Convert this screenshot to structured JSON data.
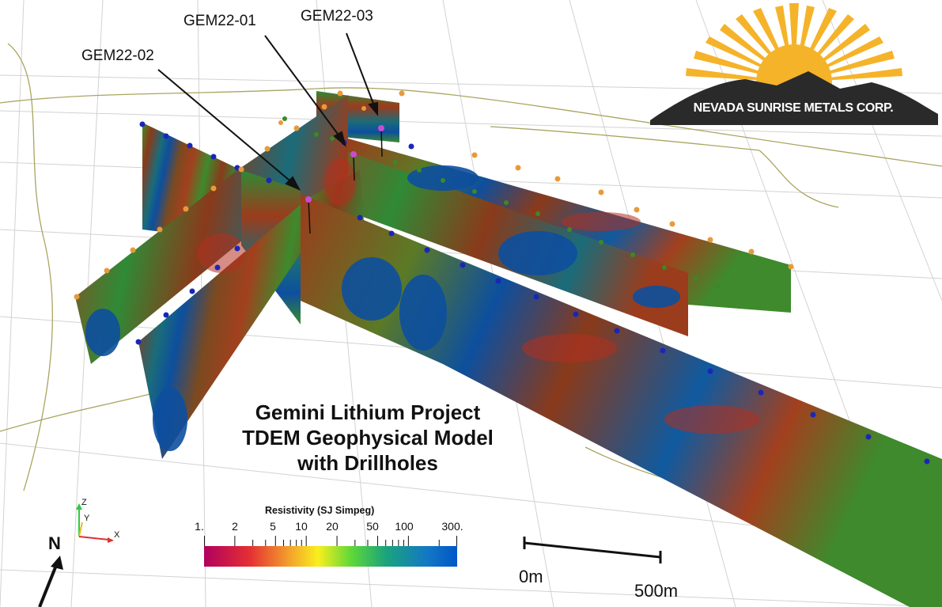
{
  "drillholes": [
    {
      "label": "GEM22-01"
    },
    {
      "label": "GEM22-02"
    },
    {
      "label": "GEM22-03"
    }
  ],
  "title_lines": [
    "Gemini Lithium Project",
    "TDEM Geophysical Model",
    "with Drillholes"
  ],
  "logo": {
    "text": "NEVADA SUNRISE METALS CORP.",
    "sun_color": "#f5b32a",
    "mountain_color": "#2a2a2a"
  },
  "colorbar": {
    "title": "Resistivity (SJ Simpeg)",
    "tick_labels": [
      "1.",
      "2",
      "5",
      "10",
      "20",
      "50",
      "100",
      "300."
    ],
    "tick_values": [
      1,
      2,
      5,
      10,
      20,
      50,
      100,
      300
    ],
    "minor_ticks": [
      3,
      4,
      6,
      7,
      8,
      9,
      30,
      40,
      60,
      70,
      80,
      90,
      200
    ],
    "min": 1,
    "max": 300,
    "scale": "log",
    "colors": [
      "#b1005e",
      "#e43034",
      "#f3a32b",
      "#f9ef1e",
      "#60d838",
      "#1aa37d",
      "#1478c4",
      "#0057c8"
    ]
  },
  "axes": {
    "x": "X",
    "y": "Y",
    "z": "Z"
  },
  "north_label": "N",
  "scalebar": {
    "start_label": "0m",
    "end_label": "500m"
  }
}
